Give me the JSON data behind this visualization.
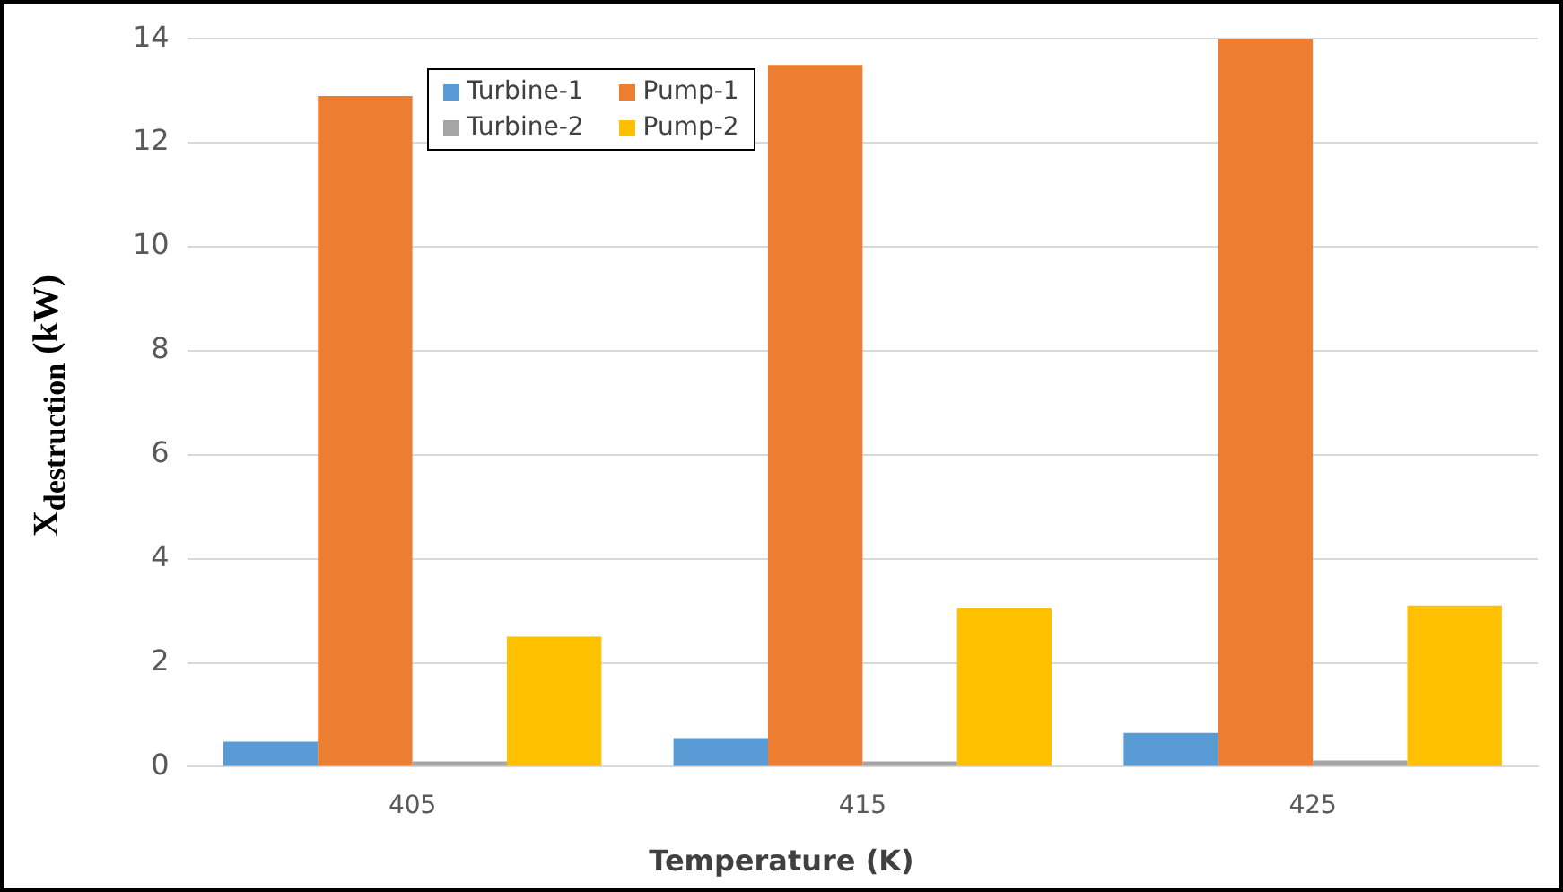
{
  "chart_data": {
    "type": "bar",
    "xlabel": "Temperature (K)",
    "ylabel": "X$_{destruction}$ (kW)",
    "categories": [
      "405",
      "415",
      "425"
    ],
    "series": [
      {
        "name": "Turbine-1",
        "color": "#5b9bd5",
        "values": [
          0.48,
          0.55,
          0.65
        ]
      },
      {
        "name": "Pump-1",
        "color": "#ed7d31",
        "values": [
          12.9,
          13.5,
          14
        ]
      },
      {
        "name": "Turbine-2",
        "color": "#a5a5a5",
        "values": [
          0.1,
          0.1,
          0.12
        ]
      },
      {
        "name": "Pump-2",
        "color": "#ffc000",
        "values": [
          2.5,
          3.05,
          3.1
        ]
      }
    ],
    "ylim": [
      0,
      14
    ],
    "yticks": [
      0,
      2,
      4,
      6,
      8,
      10,
      12,
      14
    ],
    "grid": "y",
    "legend": "top"
  }
}
